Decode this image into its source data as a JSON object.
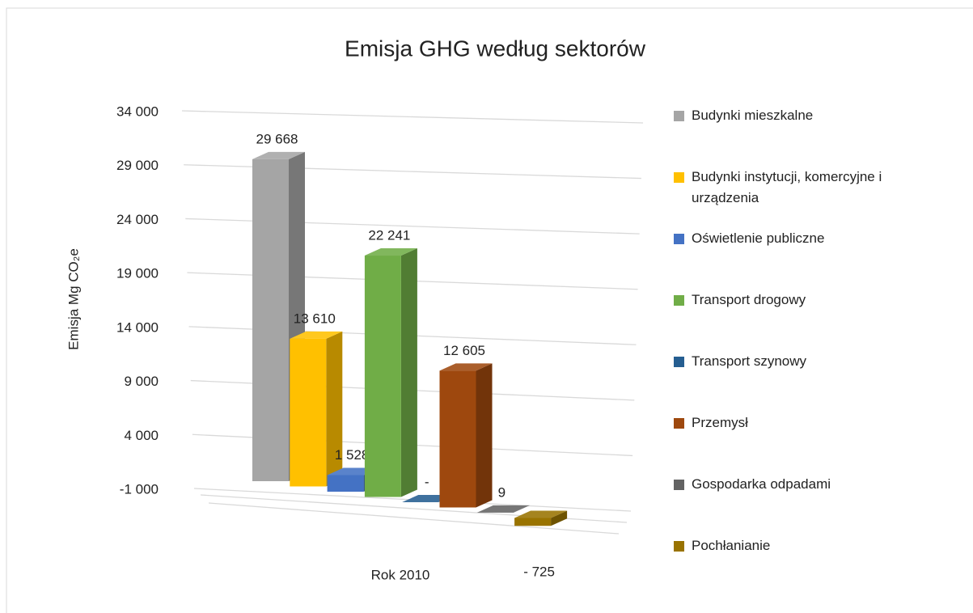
{
  "chart_data": {
    "type": "bar",
    "title": "Emisja GHG według sektorów",
    "y_label": "Emisja Mg CO₂e",
    "categories": [
      "Rok 2010"
    ],
    "ylim": [
      -1000,
      34000
    ],
    "yticks": [
      {
        "value": -1000,
        "label": "-1 000"
      },
      {
        "value": 4000,
        "label": "4 000"
      },
      {
        "value": 9000,
        "label": "9 000"
      },
      {
        "value": 14000,
        "label": "14 000"
      },
      {
        "value": 19000,
        "label": "19 000"
      },
      {
        "value": 24000,
        "label": "24 000"
      },
      {
        "value": 29000,
        "label": "29 000"
      },
      {
        "value": 34000,
        "label": "34 000"
      }
    ],
    "grid": true,
    "legend": "right",
    "series": [
      {
        "name": "Budynki mieszkalne",
        "color": "#a5a5a5",
        "values": [
          29668
        ],
        "value_labels": [
          "29 668"
        ]
      },
      {
        "name": "Budynki instytucji, komercyjne i urządzenia",
        "color": "#ffc000",
        "values": [
          13610
        ],
        "value_labels": [
          "13 610"
        ]
      },
      {
        "name": "Oświetlenie publiczne",
        "color": "#4472c4",
        "values": [
          1528
        ],
        "value_labels": [
          "1 528"
        ]
      },
      {
        "name": "Transport drogowy",
        "color": "#70ad47",
        "values": [
          22241
        ],
        "value_labels": [
          "22 241"
        ]
      },
      {
        "name": "Transport szynowy",
        "color": "#255e91",
        "values": [
          0
        ],
        "value_labels": [
          "-"
        ]
      },
      {
        "name": "Przemysł",
        "color": "#9e480e",
        "values": [
          12605
        ],
        "value_labels": [
          "12 605"
        ]
      },
      {
        "name": "Gospodarka odpadami",
        "color": "#636363",
        "values": [
          9
        ],
        "value_labels": [
          "9"
        ]
      },
      {
        "name": "Pochłanianie",
        "color": "#997300",
        "values": [
          -725
        ],
        "value_labels": [
          "- 725"
        ]
      }
    ]
  }
}
